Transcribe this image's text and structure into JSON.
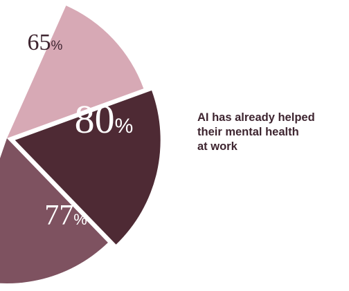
{
  "chart_data": {
    "type": "pie",
    "slices": [
      {
        "value": 65,
        "label": "65",
        "unit": "%",
        "color": "#d7a9b5"
      },
      {
        "value": 80,
        "label": "80",
        "unit": "%",
        "color": "#4e2a34",
        "highlighted": true
      },
      {
        "value": 77,
        "label": "77",
        "unit": "%",
        "color": "#7e5260"
      }
    ],
    "annotation": "AI has already helped their mental health at work",
    "annotation_lines": [
      "AI has already helped",
      "their mental health",
      "at work"
    ],
    "annotation_color": "#3e2530",
    "label_color": "#3e2530",
    "label_color_on_dark": "#ffffff"
  }
}
